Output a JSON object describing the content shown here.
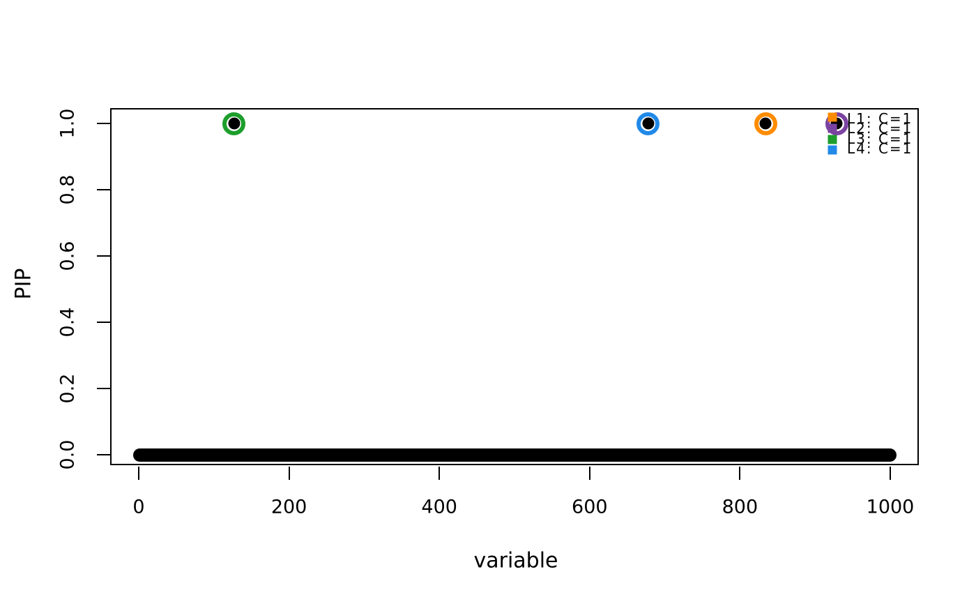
{
  "figure": {
    "background": "#ffffff",
    "foreground": "#000000"
  },
  "chart_data": {
    "type": "scatter",
    "title": "",
    "xlabel": "variable",
    "ylabel": "PIP",
    "xlim": [
      -50,
      1050
    ],
    "ylim": [
      -0.04,
      1.04
    ],
    "x_ticks": [
      "0",
      "200",
      "400",
      "600",
      "800",
      "1000"
    ],
    "x_tick_values": [
      0,
      200,
      400,
      600,
      800,
      1000
    ],
    "y_ticks": [
      "0.0",
      "0.2",
      "0.4",
      "0.6",
      "0.8",
      "1.0"
    ],
    "y_tick_values": [
      0.0,
      0.2,
      0.4,
      0.6,
      0.8,
      1.0
    ],
    "grid": "off",
    "baseline_series": {
      "description": "dense overlapping black points for all variables at PIP = 0",
      "x_start": 1,
      "x_end": 1000,
      "y": 0,
      "color": "#000000"
    },
    "highlighted_points": [
      {
        "x": 127,
        "y": 1.0,
        "point_color": "#000000",
        "ring_color": "#1D9E2C",
        "credible_set": "L3"
      },
      {
        "x": 678,
        "y": 1.0,
        "point_color": "#000000",
        "ring_color": "#2189E8",
        "credible_set": "L4"
      },
      {
        "x": 834,
        "y": 1.0,
        "point_color": "#000000",
        "ring_color": "#FF8C00",
        "credible_set": "L1"
      },
      {
        "x": 929,
        "y": 1.0,
        "point_color": "#000000",
        "ring_color": "#7B43A1",
        "credible_set": "L2"
      }
    ],
    "legend": {
      "position": "top-right",
      "entries": [
        {
          "label": "L1: C=1",
          "color": "#FF8C00"
        },
        {
          "label": "L2: C=1",
          "color": "#7B43A1"
        },
        {
          "label": "L3: C=1",
          "color": "#1D9E2C"
        },
        {
          "label": "L4: C=1",
          "color": "#2189E8"
        }
      ]
    }
  }
}
